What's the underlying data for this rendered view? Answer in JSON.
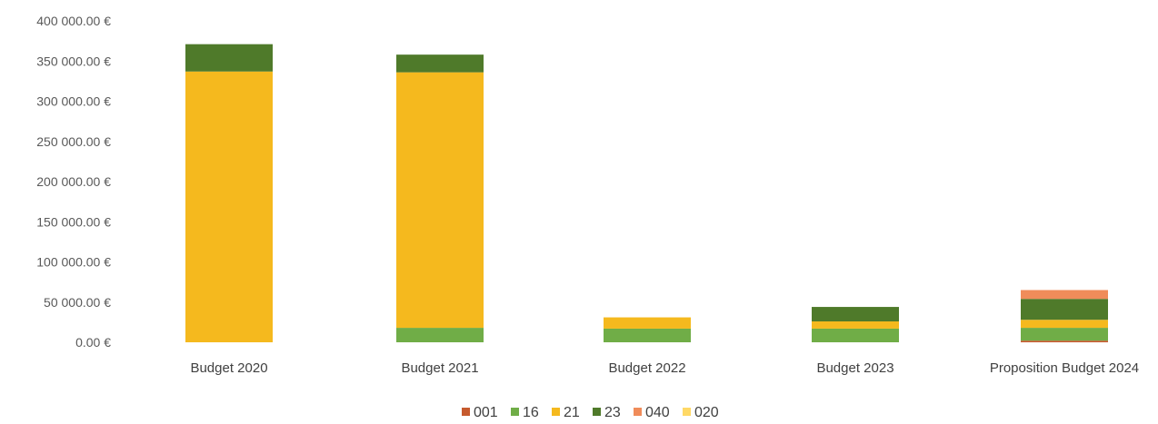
{
  "chart_data": {
    "type": "bar",
    "stacked": true,
    "title": "",
    "xlabel": "",
    "ylabel": "",
    "ylim": [
      0,
      400000
    ],
    "y_ticks": [
      "0.00 €",
      "50 000.00 €",
      "100 000.00 €",
      "150 000.00 €",
      "200 000.00 €",
      "250 000.00 €",
      "300 000.00 €",
      "350 000.00 €",
      "400 000.00 €"
    ],
    "y_tick_values": [
      0,
      50000,
      100000,
      150000,
      200000,
      250000,
      300000,
      350000,
      400000
    ],
    "categories": [
      "Budget 2020",
      "Budget 2021",
      "Budget 2022",
      "Budget 2023",
      "Proposition Budget 2024"
    ],
    "series": [
      {
        "name": "001",
        "color": "#c65a2e",
        "values": [
          0,
          0,
          0,
          0,
          2000
        ]
      },
      {
        "name": "16",
        "color": "#70ad47",
        "values": [
          0,
          18000,
          17000,
          17000,
          16000
        ]
      },
      {
        "name": "21",
        "color": "#f5b91e",
        "values": [
          337000,
          318000,
          14000,
          9000,
          10000
        ]
      },
      {
        "name": "23",
        "color": "#4f7a2a",
        "values": [
          34000,
          22000,
          0,
          18000,
          26000
        ]
      },
      {
        "name": "040",
        "color": "#f08c5a",
        "values": [
          0,
          0,
          0,
          0,
          11000
        ]
      },
      {
        "name": "020",
        "color": "#ffd966",
        "values": [
          0,
          0,
          0,
          0,
          0
        ]
      }
    ],
    "grid": false,
    "legend_position": "bottom"
  }
}
